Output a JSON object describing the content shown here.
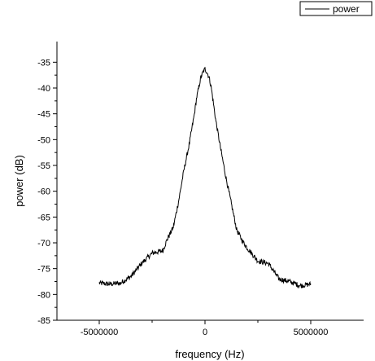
{
  "chart_data": {
    "type": "line",
    "xlabel": "frequency (Hz)",
    "ylabel": "power (dB)",
    "xlim": [
      -7000000,
      7500000
    ],
    "ylim": [
      -85,
      -31
    ],
    "xticks": [
      -5000000,
      0,
      5000000
    ],
    "xtick_labels": [
      "-5000000",
      "0",
      "5000000"
    ],
    "yticks": [
      -85,
      -80,
      -75,
      -70,
      -65,
      -60,
      -55,
      -50,
      -45,
      -40,
      -35
    ],
    "ytick_labels": [
      "-85",
      "-80",
      "-75",
      "-70",
      "-65",
      "-60",
      "-55",
      "-50",
      "-45",
      "-40",
      "-35"
    ],
    "grid": false,
    "legend_position": "top-right",
    "series": [
      {
        "name": "power",
        "color": "#000000",
        "x": [
          -5000000,
          -4500000,
          -4000000,
          -3500000,
          -3000000,
          -2500000,
          -2000000,
          -1750000,
          -1500000,
          -1250000,
          -1000000,
          -750000,
          -500000,
          -400000,
          -300000,
          -200000,
          -100000,
          0,
          100000,
          200000,
          300000,
          400000,
          500000,
          750000,
          1000000,
          1250000,
          1500000,
          1750000,
          2000000,
          2500000,
          3000000,
          3500000,
          4000000,
          4500000,
          5000000
        ],
        "y": [
          -77.8,
          -78.0,
          -77.8,
          -76.5,
          -74.0,
          -72.0,
          -71.5,
          -69.0,
          -67.0,
          -62.0,
          -56.0,
          -51.0,
          -45.0,
          -42.0,
          -40.0,
          -38.0,
          -37.0,
          -36.3,
          -37.0,
          -38.0,
          -40.0,
          -43.0,
          -46.0,
          -52.0,
          -57.5,
          -62.5,
          -67.5,
          -69.5,
          -71.0,
          -73.5,
          -74.0,
          -77.0,
          -77.5,
          -78.3,
          -78.0
        ]
      }
    ]
  }
}
